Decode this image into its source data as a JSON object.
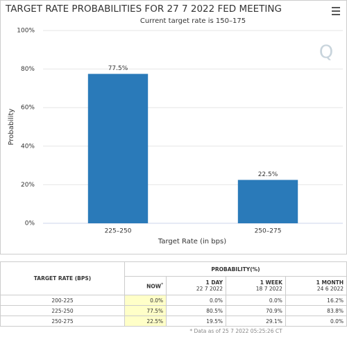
{
  "chart_data": {
    "type": "bar",
    "title": "TARGET RATE PROBABILITIES FOR 27 7 2022 FED MEETING",
    "subtitle": "Current target rate is 150–175",
    "categories": [
      "225–250",
      "250–275"
    ],
    "values": [
      77.5,
      22.5
    ],
    "value_labels": [
      "77.5%",
      "22.5%"
    ],
    "color": "#2a7ab9",
    "ylim": [
      0,
      100
    ],
    "yticks": [
      {
        "value": 0,
        "label": "0%"
      },
      {
        "value": 20,
        "label": "20%"
      },
      {
        "value": 40,
        "label": "40%"
      },
      {
        "value": 60,
        "label": "60%"
      },
      {
        "value": 80,
        "label": "80%"
      },
      {
        "value": 100,
        "label": "100%"
      }
    ],
    "ylabel": "Probability",
    "xlabel": "Target Rate (in bps)",
    "grid": true
  },
  "table": {
    "header": {
      "rate": "TARGET RATE (BPS)",
      "probability": "PROBABILITY(%)"
    },
    "columns": [
      {
        "title": "NOW",
        "mark": "*"
      },
      {
        "title": "1 DAY",
        "date": "22 7 2022"
      },
      {
        "title": "1 WEEK",
        "date": "18 7 2022"
      },
      {
        "title": "1 MONTH",
        "date": "24 6 2022"
      }
    ],
    "rows": [
      [
        "200-225",
        "0.0%",
        "0.0%",
        "0.0%",
        "16.2%"
      ],
      [
        "225-250",
        "77.5%",
        "80.5%",
        "70.9%",
        "83.8%"
      ],
      [
        "250-275",
        "22.5%",
        "19.5%",
        "29.1%",
        "0.0%"
      ]
    ],
    "footnote": "* Data as of 25 7 2022 05:25:26 CT"
  }
}
